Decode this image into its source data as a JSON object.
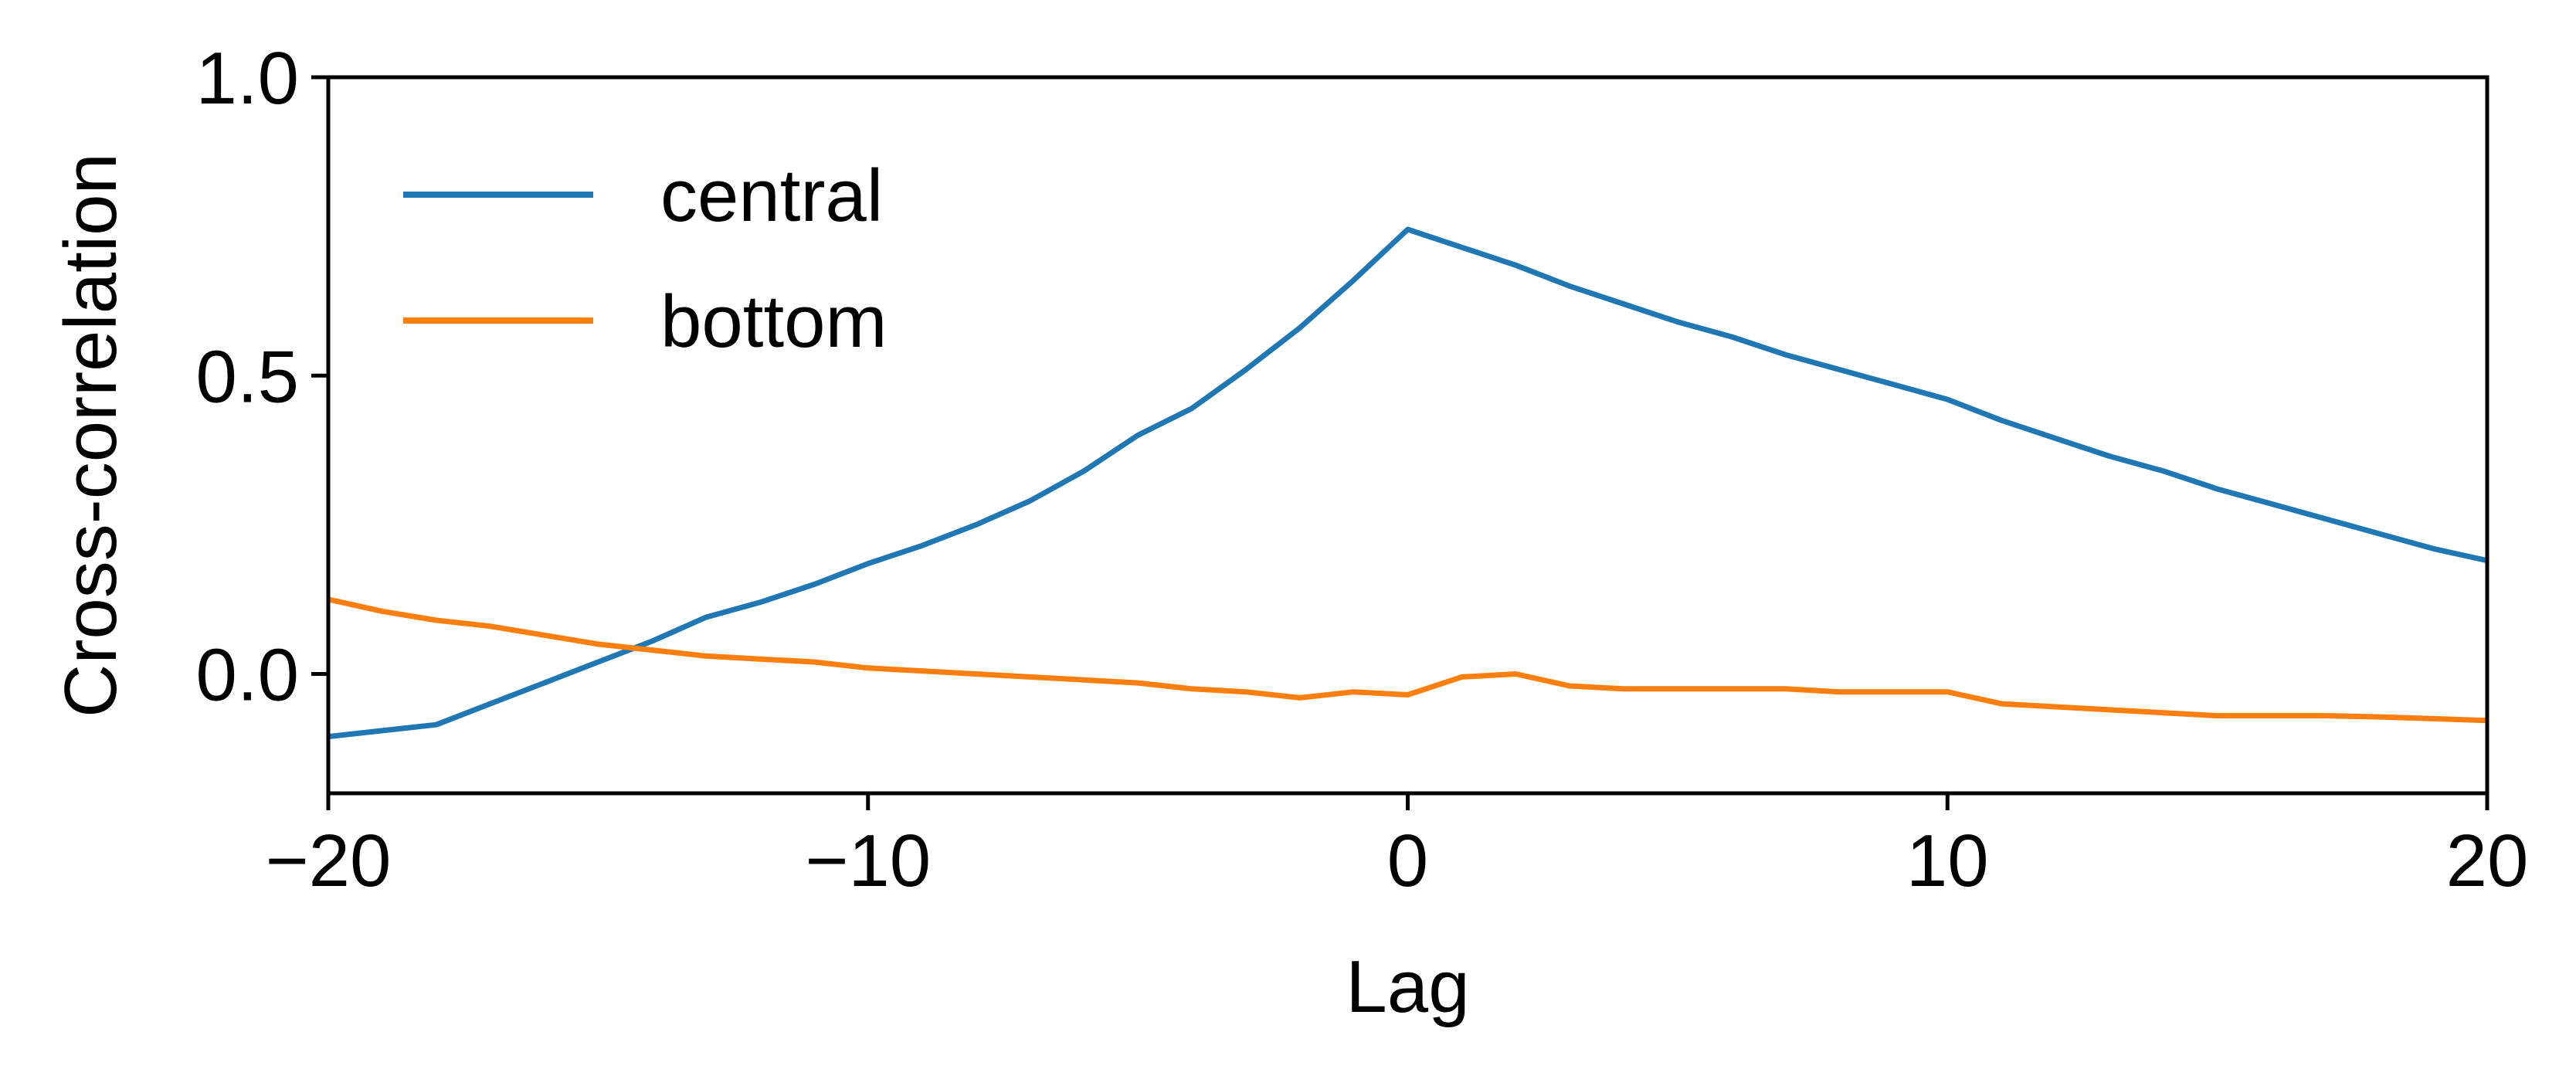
{
  "chart_data": {
    "type": "line",
    "xlabel": "Lag",
    "ylabel": "Cross-correlation",
    "xlim": [
      -20,
      20
    ],
    "ylim": [
      -0.2,
      1.0
    ],
    "xticks": [
      -20,
      -10,
      0,
      10,
      20
    ],
    "xtick_labels": [
      "−20",
      "−10",
      "0",
      "10",
      "20"
    ],
    "yticks": [
      0.0,
      0.5,
      1.0
    ],
    "ytick_labels": [
      "0.0",
      "0.5",
      "1.0"
    ],
    "grid": false,
    "legend": "top-left",
    "x": [
      -20,
      -19,
      -18,
      -17,
      -16,
      -15,
      -14,
      -13,
      -12,
      -11,
      -10,
      -9,
      -8,
      -7,
      -6,
      -5,
      -4,
      -3,
      -2,
      -1,
      0,
      1,
      2,
      3,
      4,
      5,
      6,
      7,
      8,
      9,
      10,
      11,
      12,
      13,
      14,
      15,
      16,
      17,
      18,
      19,
      20
    ],
    "series": [
      {
        "name": "central",
        "color": "#1f77b4",
        "values": [
          -0.105,
          -0.095,
          -0.085,
          -0.05,
          -0.015,
          0.02,
          0.055,
          0.095,
          0.12,
          0.15,
          0.185,
          0.215,
          0.25,
          0.29,
          0.34,
          0.4,
          0.445,
          0.51,
          0.58,
          0.66,
          0.745,
          0.715,
          0.685,
          0.65,
          0.62,
          0.59,
          0.565,
          0.535,
          0.51,
          0.485,
          0.46,
          0.425,
          0.395,
          0.365,
          0.34,
          0.31,
          0.285,
          0.26,
          0.235,
          0.21,
          0.19
        ]
      },
      {
        "name": "bottom",
        "color": "#ff7f0e",
        "values": [
          0.125,
          0.105,
          0.09,
          0.08,
          0.065,
          0.05,
          0.04,
          0.03,
          0.025,
          0.02,
          0.01,
          0.005,
          0.0,
          -0.005,
          -0.01,
          -0.015,
          -0.025,
          -0.03,
          -0.04,
          -0.03,
          -0.035,
          -0.005,
          0.0,
          -0.02,
          -0.025,
          -0.025,
          -0.025,
          -0.025,
          -0.03,
          -0.03,
          -0.03,
          -0.05,
          -0.055,
          -0.06,
          -0.065,
          -0.07,
          -0.07,
          -0.07,
          -0.072,
          -0.075,
          -0.078
        ]
      }
    ]
  }
}
